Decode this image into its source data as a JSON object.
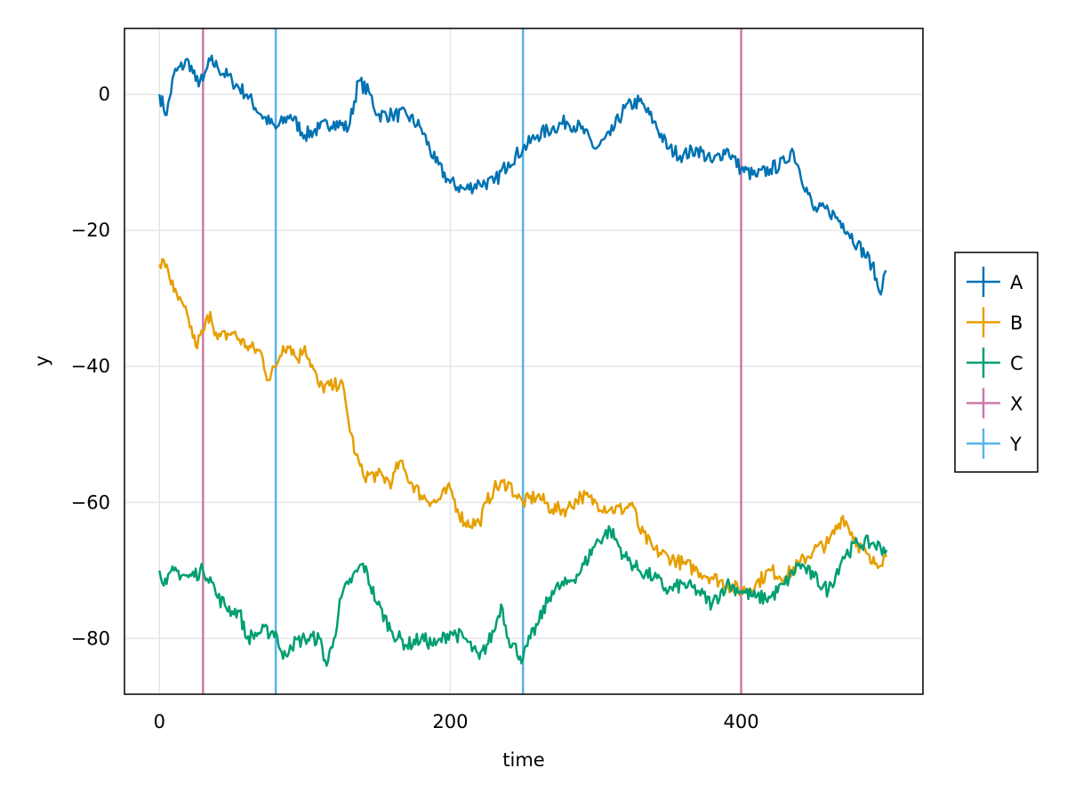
{
  "chart_data": {
    "type": "line",
    "title": "",
    "xlabel": "time",
    "ylabel": "y",
    "xlim": [
      -24,
      525
    ],
    "ylim": [
      -88.2,
      9.7
    ],
    "xticks": [
      0,
      200,
      400
    ],
    "xtick_labels": [
      "0",
      "200",
      "400"
    ],
    "yticks": [
      0,
      -20,
      -40,
      -60,
      -80
    ],
    "ytick_labels": [
      "0",
      "−20",
      "−40",
      "−60",
      "−80"
    ],
    "grid": true,
    "legend_position": "right",
    "series": [
      {
        "name": "A",
        "color": "#0072b2",
        "x": [
          0,
          5,
          10,
          20,
          25,
          30,
          35,
          40,
          50,
          60,
          70,
          80,
          90,
          100,
          110,
          120,
          130,
          137,
          145,
          150,
          160,
          170,
          180,
          190,
          200,
          210,
          220,
          230,
          240,
          250,
          260,
          270,
          280,
          290,
          300,
          310,
          320,
          330,
          340,
          350,
          360,
          370,
          380,
          390,
          400,
          410,
          420,
          430,
          435,
          440,
          450,
          460,
          470,
          480,
          490,
          495,
          500
        ],
        "y": [
          0,
          -3,
          3,
          5,
          2,
          2,
          5,
          4,
          2,
          0,
          -3,
          -5,
          -3,
          -6,
          -5,
          -4,
          -5,
          2,
          0,
          -3,
          -3,
          -3,
          -5,
          -10,
          -13,
          -14,
          -13,
          -13,
          -10,
          -8,
          -6,
          -5,
          -4,
          -5,
          -8,
          -6,
          -2,
          -1,
          -4,
          -8,
          -9,
          -8,
          -10,
          -8,
          -11,
          -12,
          -11,
          -10,
          -8,
          -11,
          -17,
          -17,
          -19,
          -22,
          -25,
          -29,
          -26
        ]
      },
      {
        "name": "B",
        "color": "#e69f00",
        "x": [
          0,
          5,
          10,
          20,
          25,
          30,
          35,
          40,
          50,
          60,
          70,
          75,
          80,
          85,
          90,
          95,
          100,
          110,
          120,
          125,
          130,
          135,
          140,
          150,
          160,
          165,
          170,
          180,
          190,
          200,
          205,
          210,
          220,
          225,
          230,
          240,
          245,
          250,
          260,
          270,
          280,
          290,
          300,
          310,
          320,
          325,
          330,
          340,
          350,
          360,
          370,
          380,
          390,
          400,
          410,
          420,
          430,
          440,
          450,
          460,
          470,
          480,
          490,
          500
        ],
        "y": [
          -25,
          -25,
          -29,
          -33,
          -37,
          -35,
          -32,
          -36,
          -35,
          -37,
          -38,
          -42,
          -40,
          -37,
          -37,
          -39,
          -37,
          -43,
          -43,
          -42,
          -48,
          -53,
          -56,
          -56,
          -57,
          -54,
          -56,
          -59,
          -60,
          -58,
          -61,
          -63,
          -63,
          -60,
          -58,
          -57,
          -59,
          -60,
          -59,
          -61,
          -61,
          -59,
          -60,
          -61,
          -61,
          -60,
          -64,
          -67,
          -68,
          -69,
          -70,
          -71,
          -72,
          -73,
          -72,
          -70,
          -71,
          -69,
          -67,
          -66,
          -62,
          -66,
          -69,
          -68
        ]
      },
      {
        "name": "C",
        "color": "#009e73",
        "x": [
          0,
          5,
          10,
          20,
          30,
          35,
          40,
          50,
          55,
          60,
          70,
          80,
          85,
          90,
          100,
          110,
          115,
          120,
          125,
          130,
          140,
          150,
          160,
          170,
          180,
          190,
          200,
          210,
          220,
          230,
          235,
          240,
          250,
          255,
          260,
          270,
          280,
          290,
          300,
          310,
          320,
          330,
          340,
          350,
          360,
          370,
          380,
          390,
          400,
          410,
          420,
          430,
          440,
          450,
          460,
          470,
          480,
          490,
          500
        ],
        "y": [
          -70,
          -72,
          -70,
          -71,
          -70,
          -71,
          -74,
          -76,
          -76,
          -80,
          -79,
          -79,
          -83,
          -81,
          -80,
          -80,
          -84,
          -80,
          -74,
          -72,
          -69,
          -75,
          -79,
          -81,
          -80,
          -81,
          -79,
          -80,
          -83,
          -79,
          -75,
          -80,
          -83,
          -80,
          -78,
          -73,
          -72,
          -70,
          -66,
          -64,
          -68,
          -70,
          -71,
          -73,
          -72,
          -73,
          -75,
          -72,
          -73,
          -74,
          -74,
          -72,
          -69,
          -71,
          -73,
          -68,
          -66,
          -66,
          -67
        ]
      }
    ],
    "vlines": [
      {
        "name": "X",
        "color": "#cc79a7",
        "x": [
          30,
          400
        ]
      },
      {
        "name": "Y",
        "color": "#56b4e9",
        "x": [
          80,
          250
        ]
      }
    ],
    "legend": [
      "A",
      "B",
      "C",
      "X",
      "Y"
    ]
  }
}
